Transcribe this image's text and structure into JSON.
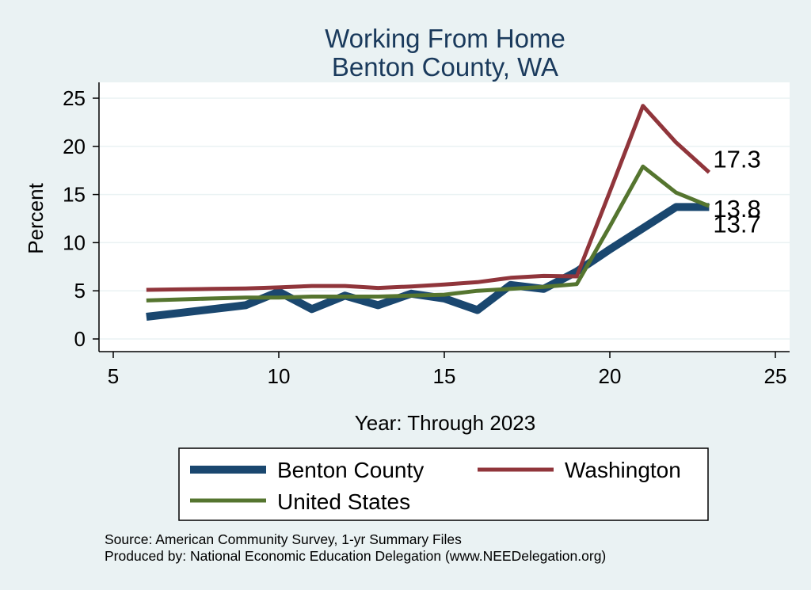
{
  "chart_data": {
    "type": "line",
    "title": [
      "Working From Home",
      "Benton County, WA"
    ],
    "xlabel": "Year: Through 2023",
    "ylabel": "Percent",
    "xlim": [
      5,
      25
    ],
    "ylim": [
      0,
      25
    ],
    "xticks": [
      5,
      10,
      15,
      20,
      25
    ],
    "yticks": [
      0,
      5,
      10,
      15,
      20,
      25
    ],
    "grid": true,
    "legend_position": "bottom",
    "series": [
      {
        "name": "Benton County",
        "color": "#1a476f",
        "x": [
          6,
          7,
          8,
          9,
          10,
          11,
          12,
          13,
          14,
          15,
          16,
          17,
          18,
          19,
          20,
          21,
          22,
          23
        ],
        "values": [
          2.3,
          2.7,
          3.1,
          3.5,
          4.9,
          3.1,
          4.5,
          3.5,
          4.7,
          4.2,
          3.0,
          5.6,
          5.2,
          7.0,
          9.3,
          11.5,
          13.7,
          13.7
        ],
        "end_label": "13.7"
      },
      {
        "name": "Washington",
        "color": "#90353b",
        "x": [
          6,
          7,
          8,
          9,
          10,
          11,
          12,
          13,
          14,
          15,
          16,
          17,
          18,
          19,
          20,
          21,
          22,
          23
        ],
        "values": [
          5.1,
          5.15,
          5.2,
          5.25,
          5.35,
          5.5,
          5.5,
          5.3,
          5.45,
          5.65,
          5.9,
          6.35,
          6.55,
          6.5,
          15.3,
          24.2,
          20.4,
          17.3
        ],
        "end_label": "17.3"
      },
      {
        "name": "United States",
        "color": "#55752f",
        "x": [
          6,
          7,
          8,
          9,
          10,
          11,
          12,
          13,
          14,
          15,
          16,
          17,
          18,
          19,
          20,
          21,
          22,
          23
        ],
        "values": [
          4.0,
          4.1,
          4.2,
          4.3,
          4.3,
          4.4,
          4.4,
          4.4,
          4.5,
          4.6,
          5.0,
          5.2,
          5.4,
          5.7,
          11.7,
          17.9,
          15.2,
          13.8
        ],
        "end_label": "13.8"
      }
    ]
  },
  "footnotes": {
    "source": "Source: American Community Survey, 1-yr Summary Files",
    "produced": "Produced by: National Economic Education Delegation (www.NEEDelegation.org)"
  }
}
